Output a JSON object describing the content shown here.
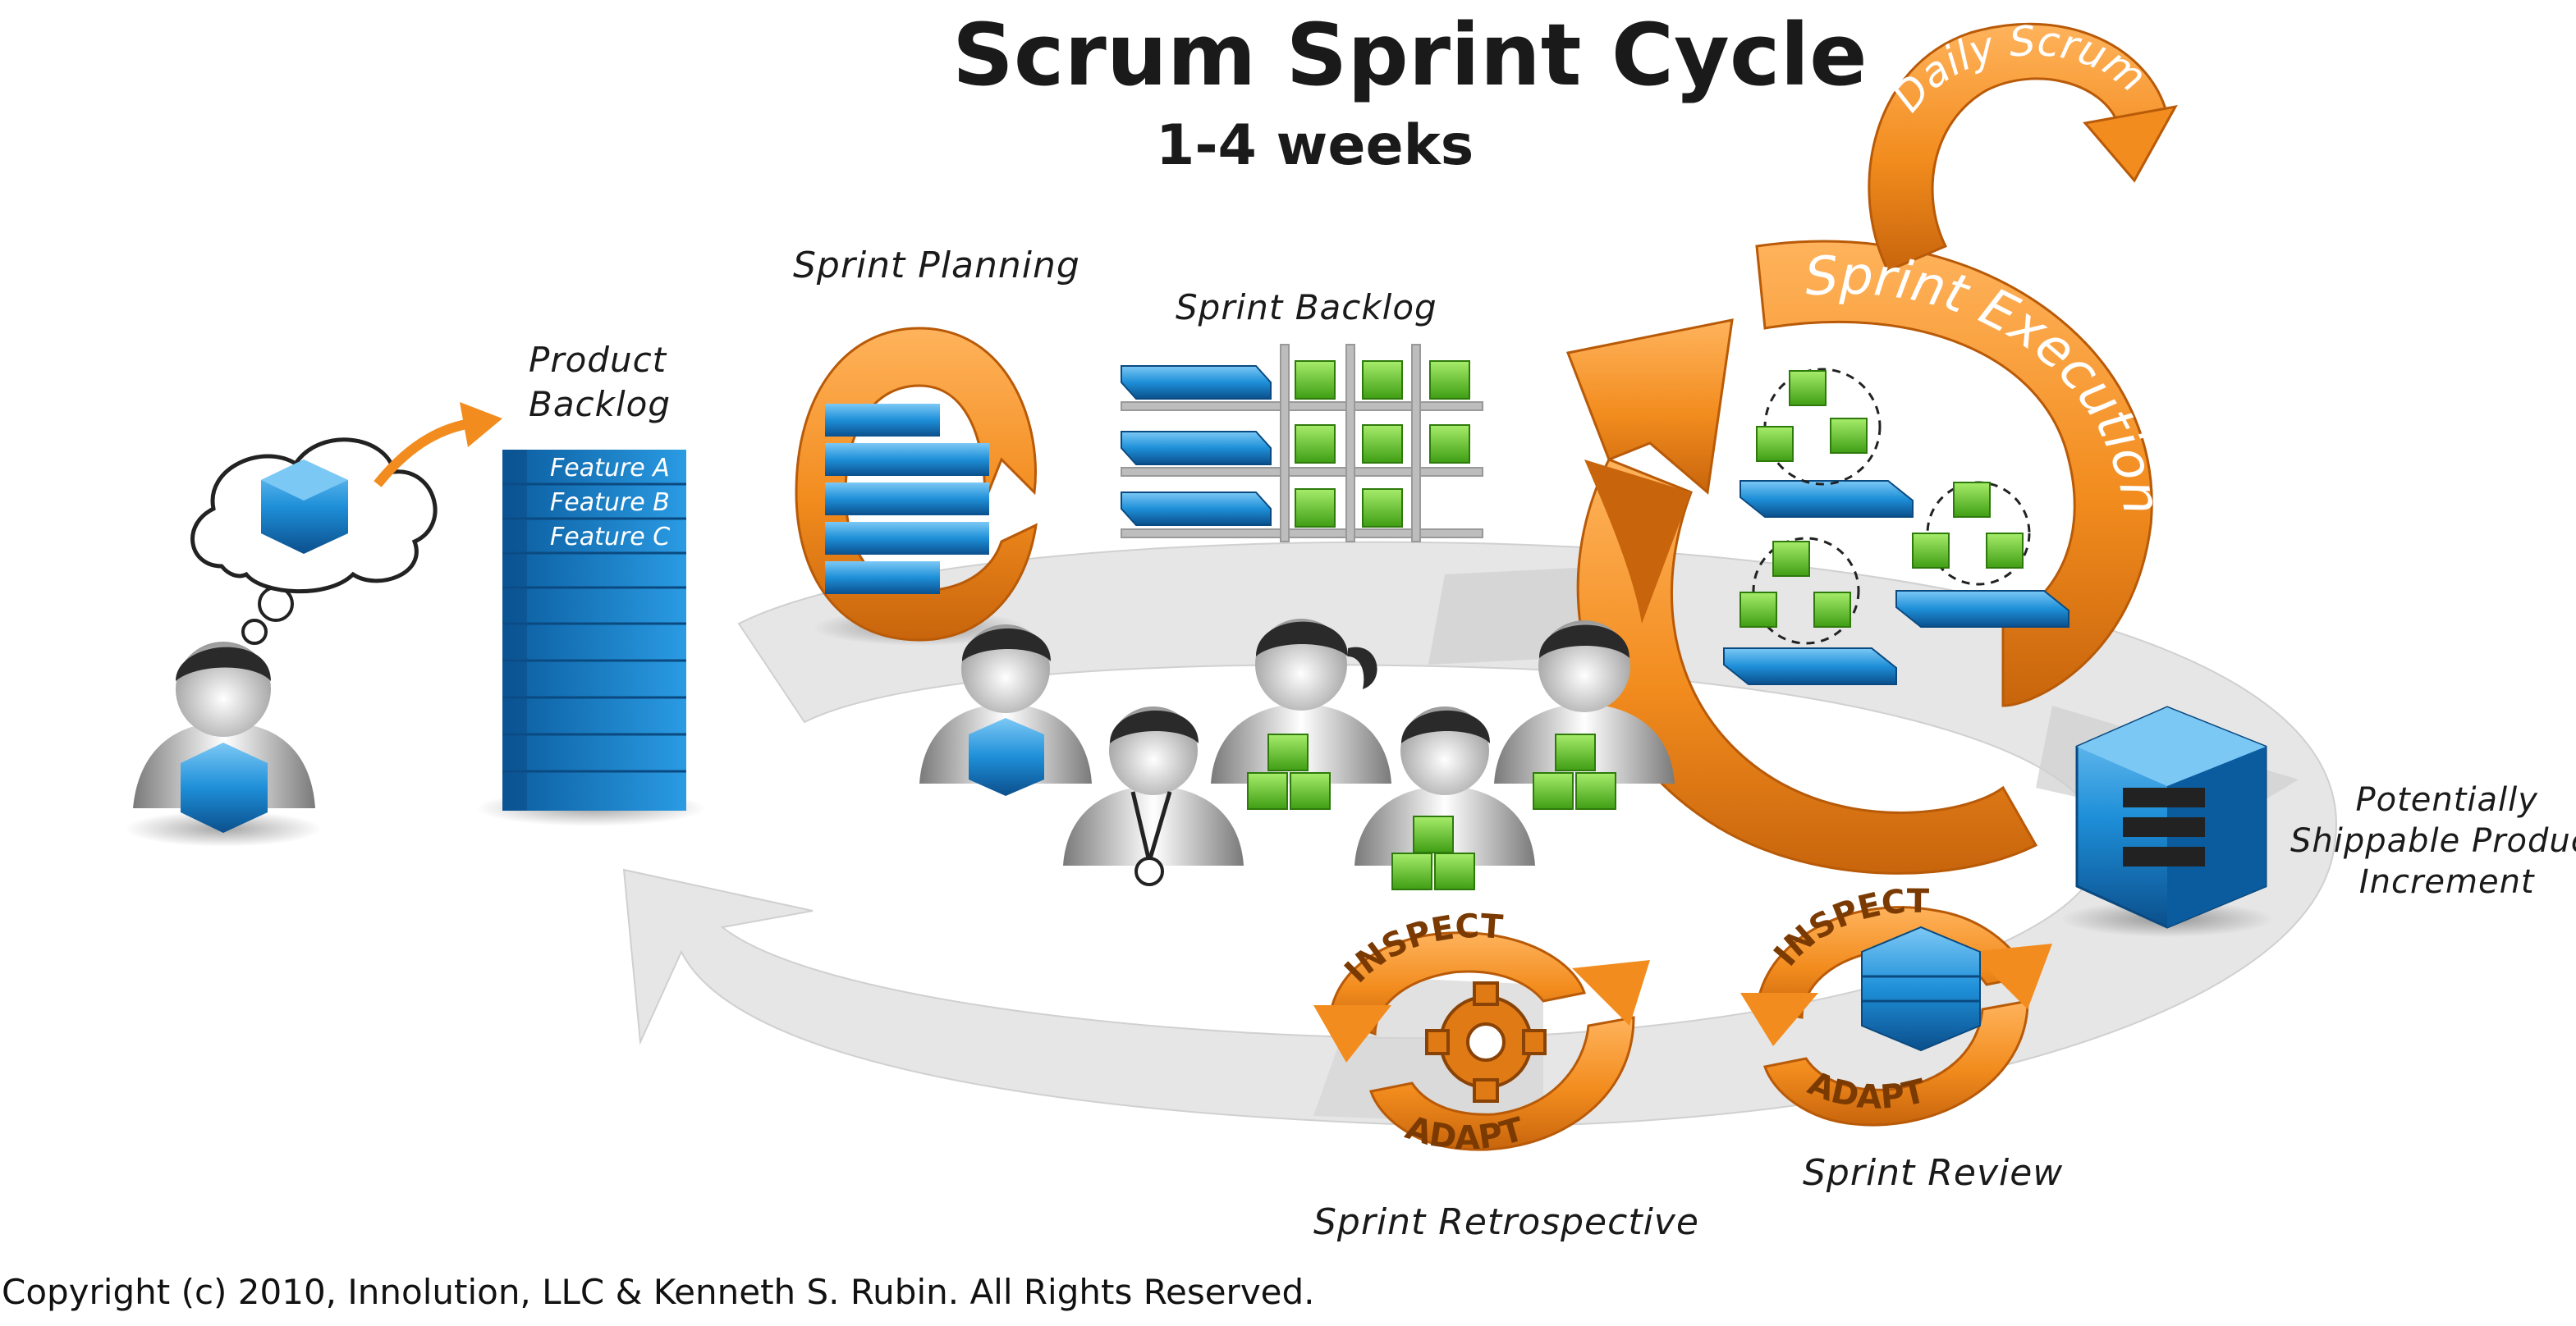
{
  "title": "Scrum Sprint Cycle",
  "subtitle": "1-4 weeks",
  "product_backlog": {
    "label_line1": "Product",
    "label_line2": "Backlog",
    "features": [
      "Feature A",
      "Feature B",
      "Feature C"
    ]
  },
  "sprint_planning": "Sprint Planning",
  "sprint_backlog": "Sprint Backlog",
  "sprint_execution": "Sprint Execution",
  "daily_scrum": "Daily Scrum",
  "increment": {
    "line1": "Potentially",
    "line2": "Shippable Product",
    "line3": "Increment"
  },
  "sprint_review": {
    "label": "Sprint Review",
    "inspect": "INSPECT",
    "adapt": "ADAPT"
  },
  "sprint_retrospective": {
    "label": "Sprint Retrospective",
    "inspect": "INSPECT",
    "adapt": "ADAPT"
  },
  "copyright": "Copyright (c) 2010, Innolution, LLC & Kenneth S. Rubin. All Rights Reserved.",
  "colors": {
    "orange": "#F28C1E",
    "orange_dark": "#C8650C",
    "blue": "#1E8FD8",
    "blue_dark": "#0B5C9E",
    "green": "#5DC22A",
    "gray_ring": "#E4E4E4",
    "person_dark": "#2A2A2A"
  }
}
